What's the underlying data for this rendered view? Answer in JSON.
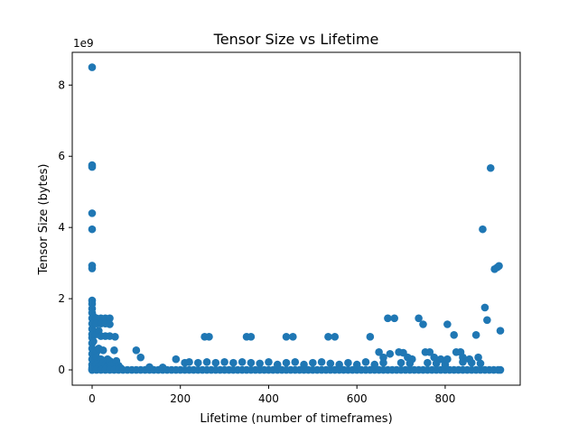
{
  "chart_data": {
    "type": "scatter",
    "title": "Tensor Size vs Lifetime",
    "xlabel": "Lifetime (number of timeframes)",
    "ylabel": "Tensor Size (bytes)",
    "y_offset_text": "1e9",
    "xlim": [
      -45,
      970
    ],
    "ylim": [
      -0.43,
      8.92
    ],
    "y_scale_factor": 1000000000,
    "x_ticks": [
      0,
      200,
      400,
      600,
      800
    ],
    "x_tick_labels": [
      "0",
      "200",
      "400",
      "600",
      "800"
    ],
    "y_ticks": [
      0,
      2,
      4,
      6,
      8
    ],
    "y_tick_labels": [
      "0",
      "2",
      "4",
      "6",
      "8"
    ],
    "grid": false,
    "marker_color": "#1f77b4",
    "points": [
      [
        0,
        8.5
      ],
      [
        0,
        5.75
      ],
      [
        0,
        5.7
      ],
      [
        0,
        4.4
      ],
      [
        0,
        3.95
      ],
      [
        0,
        2.93
      ],
      [
        0,
        2.85
      ],
      [
        0,
        1.95
      ],
      [
        0,
        1.85
      ],
      [
        0,
        1.72
      ],
      [
        0,
        1.6
      ],
      [
        0,
        1.45
      ],
      [
        0,
        1.3
      ],
      [
        0,
        1.15
      ],
      [
        0,
        1.0
      ],
      [
        0,
        0.9
      ],
      [
        0,
        0.75
      ],
      [
        0,
        0.6
      ],
      [
        0,
        0.45
      ],
      [
        0,
        0.3
      ],
      [
        0,
        0.15
      ],
      [
        0,
        0.05
      ],
      [
        0,
        0.0
      ],
      [
        3,
        1.5
      ],
      [
        3,
        1.1
      ],
      [
        3,
        0.8
      ],
      [
        3,
        0.5
      ],
      [
        4,
        0.25
      ],
      [
        4,
        0.1
      ],
      [
        10,
        1.45
      ],
      [
        10,
        1.3
      ],
      [
        10,
        1.0
      ],
      [
        10,
        0.5
      ],
      [
        10,
        0.35
      ],
      [
        10,
        0.15
      ],
      [
        15,
        1.1
      ],
      [
        15,
        0.6
      ],
      [
        15,
        0.1
      ],
      [
        20,
        1.45
      ],
      [
        20,
        1.3
      ],
      [
        20,
        0.95
      ],
      [
        20,
        0.3
      ],
      [
        25,
        0.55
      ],
      [
        25,
        0.2
      ],
      [
        30,
        1.45
      ],
      [
        30,
        1.3
      ],
      [
        30,
        0.95
      ],
      [
        30,
        0.15
      ],
      [
        35,
        0.3
      ],
      [
        35,
        0.1
      ],
      [
        40,
        1.45
      ],
      [
        40,
        1.28
      ],
      [
        40,
        0.95
      ],
      [
        40,
        0.25
      ],
      [
        45,
        0.15
      ],
      [
        50,
        0.55
      ],
      [
        52,
        0.93
      ],
      [
        55,
        0.25
      ],
      [
        60,
        0.12
      ],
      [
        65,
        0.05
      ],
      [
        100,
        0.55
      ],
      [
        110,
        0.35
      ],
      [
        190,
        0.3
      ],
      [
        255,
        0.93
      ],
      [
        265,
        0.93
      ],
      [
        350,
        0.93
      ],
      [
        360,
        0.93
      ],
      [
        440,
        0.93
      ],
      [
        455,
        0.93
      ],
      [
        535,
        0.93
      ],
      [
        550,
        0.93
      ],
      [
        630,
        0.93
      ],
      [
        650,
        0.5
      ],
      [
        660,
        0.35
      ],
      [
        670,
        1.45
      ],
      [
        675,
        0.45
      ],
      [
        685,
        1.45
      ],
      [
        695,
        0.5
      ],
      [
        705,
        0.48
      ],
      [
        715,
        0.35
      ],
      [
        725,
        0.3
      ],
      [
        740,
        1.45
      ],
      [
        750,
        1.28
      ],
      [
        755,
        0.5
      ],
      [
        765,
        0.5
      ],
      [
        775,
        0.35
      ],
      [
        790,
        0.3
      ],
      [
        805,
        1.28
      ],
      [
        805,
        0.3
      ],
      [
        820,
        0.98
      ],
      [
        825,
        0.5
      ],
      [
        835,
        0.5
      ],
      [
        840,
        0.35
      ],
      [
        855,
        0.3
      ],
      [
        870,
        0.98
      ],
      [
        875,
        0.35
      ],
      [
        885,
        3.95
      ],
      [
        890,
        1.75
      ],
      [
        895,
        1.4
      ],
      [
        903,
        5.67
      ],
      [
        912,
        2.83
      ],
      [
        918,
        2.88
      ],
      [
        922,
        2.92
      ],
      [
        925,
        1.1
      ],
      [
        0,
        0
      ],
      [
        10,
        0
      ],
      [
        20,
        0
      ],
      [
        30,
        0
      ],
      [
        40,
        0
      ],
      [
        50,
        0
      ],
      [
        60,
        0
      ],
      [
        70,
        0
      ],
      [
        80,
        0
      ],
      [
        90,
        0
      ],
      [
        100,
        0
      ],
      [
        110,
        0
      ],
      [
        120,
        0
      ],
      [
        130,
        0
      ],
      [
        140,
        0
      ],
      [
        150,
        0
      ],
      [
        160,
        0
      ],
      [
        170,
        0
      ],
      [
        180,
        0
      ],
      [
        190,
        0
      ],
      [
        200,
        0
      ],
      [
        210,
        0
      ],
      [
        220,
        0
      ],
      [
        230,
        0
      ],
      [
        240,
        0
      ],
      [
        250,
        0
      ],
      [
        260,
        0
      ],
      [
        270,
        0
      ],
      [
        280,
        0
      ],
      [
        290,
        0
      ],
      [
        300,
        0
      ],
      [
        310,
        0
      ],
      [
        320,
        0
      ],
      [
        330,
        0
      ],
      [
        340,
        0
      ],
      [
        350,
        0
      ],
      [
        360,
        0
      ],
      [
        370,
        0
      ],
      [
        380,
        0
      ],
      [
        390,
        0
      ],
      [
        400,
        0
      ],
      [
        410,
        0
      ],
      [
        420,
        0
      ],
      [
        430,
        0
      ],
      [
        440,
        0
      ],
      [
        450,
        0
      ],
      [
        460,
        0
      ],
      [
        470,
        0
      ],
      [
        480,
        0
      ],
      [
        490,
        0
      ],
      [
        500,
        0
      ],
      [
        510,
        0
      ],
      [
        520,
        0
      ],
      [
        530,
        0
      ],
      [
        540,
        0
      ],
      [
        550,
        0
      ],
      [
        560,
        0
      ],
      [
        570,
        0
      ],
      [
        580,
        0
      ],
      [
        590,
        0
      ],
      [
        600,
        0
      ],
      [
        610,
        0
      ],
      [
        620,
        0
      ],
      [
        630,
        0
      ],
      [
        640,
        0
      ],
      [
        650,
        0
      ],
      [
        660,
        0
      ],
      [
        670,
        0
      ],
      [
        680,
        0
      ],
      [
        690,
        0
      ],
      [
        700,
        0
      ],
      [
        710,
        0
      ],
      [
        720,
        0
      ],
      [
        730,
        0
      ],
      [
        740,
        0
      ],
      [
        750,
        0
      ],
      [
        760,
        0
      ],
      [
        770,
        0
      ],
      [
        780,
        0
      ],
      [
        790,
        0
      ],
      [
        800,
        0
      ],
      [
        810,
        0
      ],
      [
        820,
        0
      ],
      [
        830,
        0
      ],
      [
        840,
        0
      ],
      [
        850,
        0
      ],
      [
        860,
        0
      ],
      [
        870,
        0
      ],
      [
        880,
        0
      ],
      [
        890,
        0
      ],
      [
        900,
        0
      ],
      [
        910,
        0
      ],
      [
        920,
        0
      ],
      [
        925,
        0
      ],
      [
        130,
        0.08
      ],
      [
        160,
        0.07
      ],
      [
        210,
        0.2
      ],
      [
        220,
        0.22
      ],
      [
        240,
        0.2
      ],
      [
        260,
        0.22
      ],
      [
        280,
        0.2
      ],
      [
        300,
        0.22
      ],
      [
        320,
        0.2
      ],
      [
        340,
        0.22
      ],
      [
        360,
        0.2
      ],
      [
        380,
        0.18
      ],
      [
        400,
        0.22
      ],
      [
        420,
        0.15
      ],
      [
        440,
        0.2
      ],
      [
        460,
        0.22
      ],
      [
        480,
        0.15
      ],
      [
        500,
        0.2
      ],
      [
        520,
        0.22
      ],
      [
        540,
        0.18
      ],
      [
        560,
        0.15
      ],
      [
        580,
        0.2
      ],
      [
        600,
        0.15
      ],
      [
        620,
        0.22
      ],
      [
        640,
        0.15
      ],
      [
        660,
        0.2
      ],
      [
        700,
        0.2
      ],
      [
        720,
        0.18
      ],
      [
        760,
        0.2
      ],
      [
        780,
        0.18
      ],
      [
        800,
        0.15
      ],
      [
        840,
        0.22
      ],
      [
        860,
        0.2
      ],
      [
        880,
        0.18
      ]
    ]
  }
}
